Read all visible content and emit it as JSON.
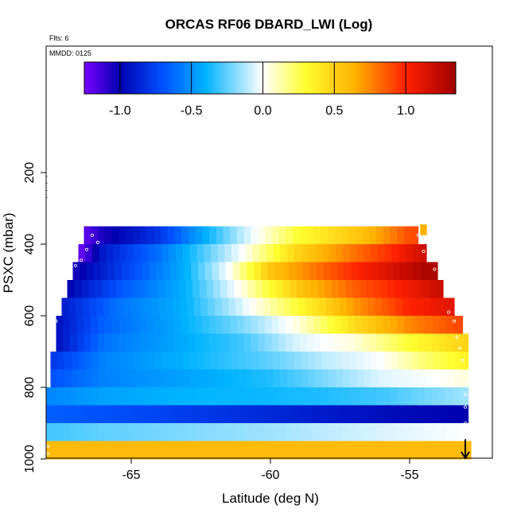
{
  "chart_data": {
    "type": "heatmap",
    "title": "ORCAS RF06 DBARD_LWI (Log)",
    "flights_note": "Flts: 6",
    "date_note": "MMDD: 0125",
    "xlabel": "Latitude (deg N)",
    "ylabel": "PSXC (mbar)",
    "x_ticks": [
      -65,
      -60,
      -55
    ],
    "x_tick_labels": [
      "-65",
      "-60",
      "-55"
    ],
    "y_ticks": [
      200,
      400,
      600,
      800,
      1000
    ],
    "y_tick_labels": [
      "200",
      "400",
      "600",
      "800",
      "1000"
    ],
    "xlim": [
      -68.2,
      -52.2
    ],
    "ylim_reversed": [
      1000,
      0
    ],
    "colorbar": {
      "range": [
        -1.25,
        1.35
      ],
      "ticks": [
        -1.0,
        -0.5,
        0.0,
        0.5,
        1.0
      ],
      "tick_labels": [
        "-1.0",
        "-0.5",
        "0.0",
        "0.5",
        "1.0"
      ],
      "colors": [
        "#7a00ff",
        "#0000b0",
        "#0050ff",
        "#00b4ff",
        "#ffffff",
        "#ffff30",
        "#ffb000",
        "#ff2000",
        "#a00000"
      ],
      "color_stops": [
        -1.25,
        -1.0,
        -0.7,
        -0.4,
        0.0,
        0.3,
        0.65,
        1.0,
        1.35
      ]
    },
    "rows": [
      {
        "p": 375,
        "lat_min": -66.7,
        "lat_max": -54.7,
        "points": [
          [
            -66.7,
            -1.2
          ],
          [
            -66.0,
            -1.05
          ],
          [
            -64.0,
            -0.8
          ],
          [
            -61.0,
            -0.1
          ],
          [
            -59.0,
            0.3
          ],
          [
            -56.5,
            0.6
          ],
          [
            -55.0,
            0.9
          ]
        ]
      },
      {
        "p": 425,
        "lat_min": -66.9,
        "lat_max": -54.4,
        "points": [
          [
            -66.9,
            -1.25
          ],
          [
            -66.0,
            -0.9
          ],
          [
            -64.0,
            -0.6
          ],
          [
            -61.0,
            0.0
          ],
          [
            -59.0,
            0.5
          ],
          [
            -57.0,
            0.8
          ],
          [
            -55.5,
            1.0
          ],
          [
            -54.4,
            1.2
          ]
        ]
      },
      {
        "p": 475,
        "lat_min": -67.1,
        "lat_max": -54.0,
        "points": [
          [
            -67.1,
            -1.05
          ],
          [
            -65.5,
            -0.8
          ],
          [
            -63.0,
            -0.4
          ],
          [
            -61.5,
            0.0
          ],
          [
            -60.0,
            0.55
          ],
          [
            -58.0,
            0.85
          ],
          [
            -56.0,
            1.1
          ],
          [
            -54.5,
            1.3
          ]
        ]
      },
      {
        "p": 525,
        "lat_min": -67.3,
        "lat_max": -53.8,
        "points": [
          [
            -67.3,
            -1.0
          ],
          [
            -65.5,
            -0.7
          ],
          [
            -63.0,
            -0.4
          ],
          [
            -61.0,
            0.05
          ],
          [
            -59.0,
            0.55
          ],
          [
            -57.0,
            0.85
          ],
          [
            -55.0,
            1.05
          ],
          [
            -54.0,
            1.2
          ]
        ]
      },
      {
        "p": 575,
        "lat_min": -67.5,
        "lat_max": -53.4,
        "points": [
          [
            -67.5,
            -0.9
          ],
          [
            -65.5,
            -0.6
          ],
          [
            -63.0,
            -0.4
          ],
          [
            -61.0,
            -0.05
          ],
          [
            -59.0,
            0.3
          ],
          [
            -57.0,
            0.7
          ],
          [
            -55.0,
            1.0
          ],
          [
            -53.6,
            1.1
          ]
        ]
      },
      {
        "p": 625,
        "lat_min": -67.7,
        "lat_max": -53.1,
        "points": [
          [
            -67.7,
            -0.95
          ],
          [
            -66.0,
            -0.65
          ],
          [
            -63.5,
            -0.45
          ],
          [
            -61.0,
            -0.2
          ],
          [
            -59.0,
            0.05
          ],
          [
            -57.0,
            0.45
          ],
          [
            -55.0,
            0.75
          ],
          [
            -53.3,
            0.9
          ]
        ]
      },
      {
        "p": 675,
        "lat_min": -67.7,
        "lat_max": -52.9,
        "points": [
          [
            -67.7,
            -0.95
          ],
          [
            -66.0,
            -0.6
          ],
          [
            -63.5,
            -0.45
          ],
          [
            -61.0,
            -0.3
          ],
          [
            -59.0,
            -0.05
          ],
          [
            -57.0,
            0.05
          ],
          [
            -55.0,
            0.3
          ],
          [
            -53.0,
            0.5
          ]
        ]
      },
      {
        "p": 725,
        "lat_min": -67.9,
        "lat_max": -52.9,
        "points": [
          [
            -67.9,
            -0.8
          ],
          [
            -66.0,
            -0.55
          ],
          [
            -63.0,
            -0.4
          ],
          [
            -60.0,
            -0.25
          ],
          [
            -58.0,
            -0.1
          ],
          [
            -56.0,
            0.0
          ],
          [
            -54.5,
            0.2
          ],
          [
            -53.0,
            0.35
          ]
        ]
      },
      {
        "p": 775,
        "lat_min": -67.9,
        "lat_max": -52.9,
        "points": [
          [
            -67.9,
            -0.7
          ],
          [
            -66.0,
            -0.55
          ],
          [
            -63.0,
            -0.45
          ],
          [
            -60.0,
            -0.35
          ],
          [
            -58.0,
            -0.2
          ],
          [
            -56.0,
            -0.05
          ],
          [
            -54.0,
            0.0
          ],
          [
            -53.0,
            0.05
          ]
        ]
      },
      {
        "p": 825,
        "lat_min": -68.2,
        "lat_max": -52.9,
        "points": [
          [
            -68.2,
            -0.55
          ],
          [
            -66.0,
            -0.45
          ],
          [
            -63.0,
            -0.4
          ],
          [
            -60.0,
            -0.38
          ],
          [
            -58.0,
            -0.35
          ],
          [
            -56.0,
            -0.3
          ],
          [
            -54.0,
            -0.2
          ],
          [
            -53.0,
            -0.15
          ]
        ]
      },
      {
        "p": 875,
        "lat_min": -68.2,
        "lat_max": -52.9,
        "points": [
          [
            -68.2,
            -0.65
          ],
          [
            -66.0,
            -0.7
          ],
          [
            -64.0,
            -0.75
          ],
          [
            -62.0,
            -0.8
          ],
          [
            -60.0,
            -0.85
          ],
          [
            -58.0,
            -0.9
          ],
          [
            -56.0,
            -0.95
          ],
          [
            -53.0,
            -1.0
          ]
        ]
      },
      {
        "p": 925,
        "lat_min": -68.2,
        "lat_max": -52.9,
        "points": [
          [
            -68.2,
            -0.3
          ],
          [
            -66.0,
            -0.25
          ],
          [
            -63.0,
            -0.2
          ],
          [
            -60.0,
            -0.15
          ],
          [
            -57.0,
            -0.08
          ],
          [
            -54.0,
            -0.02
          ],
          [
            -53.0,
            0.0
          ]
        ]
      },
      {
        "p": 975,
        "lat_min": -68.2,
        "lat_max": -52.8,
        "points": [
          [
            -68.2,
            0.6
          ],
          [
            -63.0,
            0.6
          ],
          [
            -60.0,
            0.6
          ],
          [
            -56.0,
            0.6
          ],
          [
            -52.8,
            0.6
          ]
        ]
      }
    ],
    "marker_points": [
      [
        -66.4,
        375
      ],
      [
        -66.2,
        395
      ],
      [
        -66.6,
        415
      ],
      [
        -66.8,
        445
      ],
      [
        -67.0,
        460
      ],
      [
        -67.2,
        490
      ],
      [
        -67.4,
        540
      ],
      [
        -67.6,
        585
      ],
      [
        -67.7,
        615
      ],
      [
        -67.9,
        650
      ],
      [
        -54.7,
        375
      ],
      [
        -54.6,
        395
      ],
      [
        -54.5,
        420
      ],
      [
        -54.3,
        445
      ],
      [
        -54.1,
        470
      ],
      [
        -53.6,
        590
      ],
      [
        -53.4,
        615
      ],
      [
        -53.3,
        660
      ],
      [
        -53.2,
        690
      ],
      [
        -53.1,
        725
      ],
      [
        -53.0,
        760
      ],
      [
        -53.0,
        790
      ],
      [
        -53.0,
        820
      ],
      [
        -53.0,
        855
      ],
      [
        -53.0,
        900
      ],
      [
        -68.1,
        875
      ],
      [
        -68.1,
        905
      ],
      [
        -68.2,
        925
      ],
      [
        -68.1,
        950
      ],
      [
        -68.0,
        965
      ],
      [
        -68.0,
        985
      ]
    ],
    "arrow": {
      "lat": -53.0,
      "p_from": 945,
      "p_to": 1000
    },
    "upper_column": {
      "lat": -54.5,
      "p_top": 345,
      "p_bottom": 375,
      "value": 0.65
    }
  }
}
